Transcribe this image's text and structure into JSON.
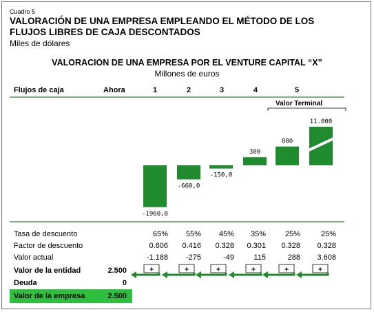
{
  "cuadro": "Cuadro 5",
  "main_title_line1": "VALORACIÓN DE UNA EMPRESA EMPLEANDO EL MÉTODO DE LOS",
  "main_title_line2": "FLUJOS LIBRES DE CAJA DESCONTADOS",
  "main_subtitle": "Miles de dólares",
  "chart_title": "VALORACION DE UNA EMPRESA POR EL VENTURE CAPITAL “X”",
  "chart_subtitle": "Millones de euros",
  "header": {
    "flujos": "Flujos de caja",
    "ahora": "Ahora",
    "years": [
      "1",
      "2",
      "3",
      "4",
      "5"
    ]
  },
  "valor_terminal_label": "Valor Terminal",
  "chart_data": {
    "type": "bar",
    "categories": [
      "1",
      "2",
      "3",
      "4",
      "5",
      "Valor Terminal"
    ],
    "values": [
      -1960,
      -660,
      -150,
      380,
      880,
      11000
    ],
    "value_labels": [
      "-1960,0",
      "-660,0",
      "-150,0",
      "380",
      "880",
      "11.000"
    ],
    "axis_break_on": "Valor Terminal",
    "bar_color": "#1f8a2e"
  },
  "rows": {
    "tasa": {
      "label": "Tasa de descuento",
      "values": [
        "65%",
        "55%",
        "45%",
        "35%",
        "25%",
        "25%"
      ]
    },
    "factor": {
      "label": "Factor de descuento",
      "values": [
        "0.606",
        "0.416",
        "0.328",
        "0.301",
        "0.328",
        "0.328"
      ]
    },
    "actual": {
      "label": "Valor actual",
      "values": [
        "-1.188",
        "-275",
        "-49",
        "115",
        "288",
        "3.608"
      ]
    }
  },
  "summary": {
    "entidad_label": "Valor de la entidad",
    "entidad_value": "2.500",
    "deuda_label": "Deuda",
    "deuda_value": "0",
    "empresa_label": "Valor de la empresa",
    "empresa_value": "2.500"
  },
  "plus_sign": "+",
  "colors": {
    "accent_green": "#2fbf3f",
    "line_green": "#2e7d32",
    "bar_green": "#1f8a2e"
  }
}
